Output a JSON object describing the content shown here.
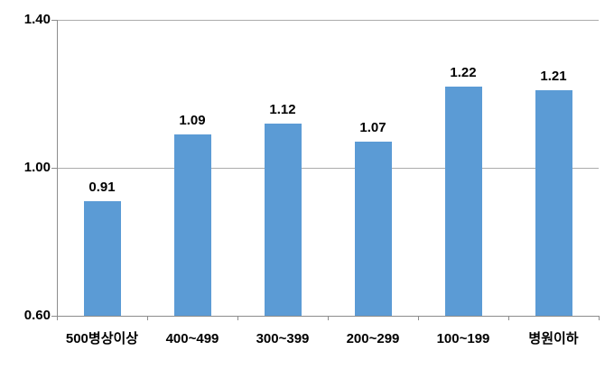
{
  "chart_data": {
    "type": "bar",
    "title": "",
    "xlabel": "",
    "ylabel": "",
    "categories": [
      "500병상이상",
      "400~499",
      "300~399",
      "200~299",
      "100~199",
      "병원이하"
    ],
    "values": [
      0.91,
      1.09,
      1.12,
      1.07,
      1.22,
      1.21
    ],
    "value_labels": [
      "0.91",
      "1.09",
      "1.12",
      "1.07",
      "1.22",
      "1.21"
    ],
    "y_tick_labels": [
      "1.40",
      "1.00",
      "0.60"
    ],
    "y_tick_values": [
      1.4,
      1.0,
      0.6
    ],
    "ylim": [
      0.6,
      1.4
    ],
    "legend": "none",
    "grid": "horizontal",
    "colors": {
      "bar": "#5B9BD5",
      "gridline": "#ACACAC",
      "axis": "#8C8C8C",
      "text": "#000000",
      "background": "#FFFFFF"
    }
  }
}
